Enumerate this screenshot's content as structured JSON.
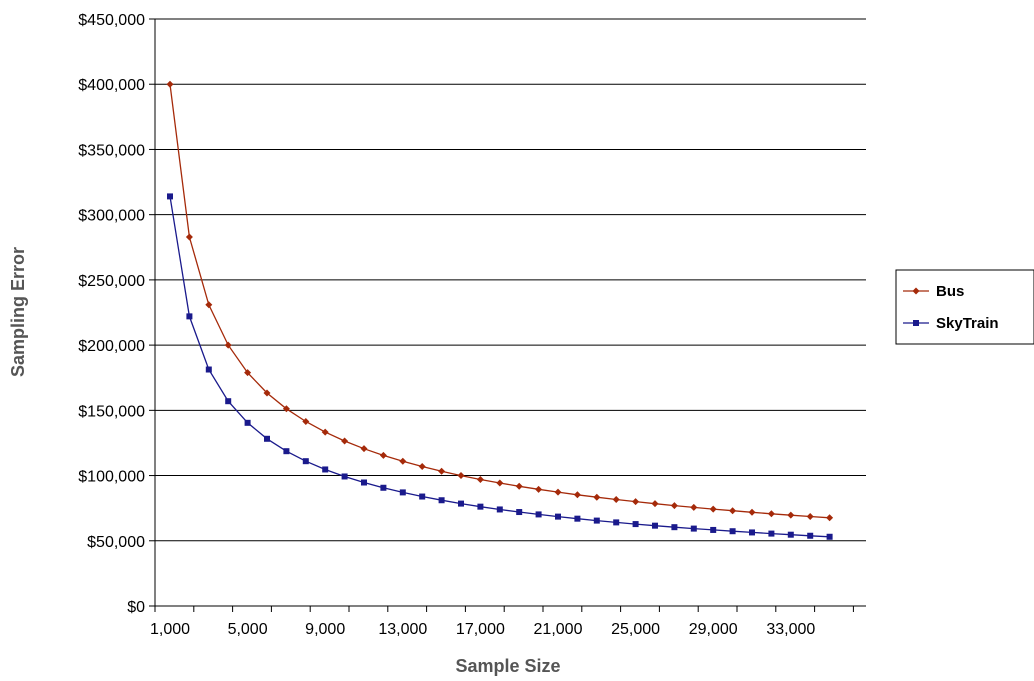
{
  "chart_data": {
    "type": "line",
    "title": "",
    "xlabel": "Sample Size",
    "ylabel": "Sampling Error",
    "xlim": [
      1000,
      35000
    ],
    "ylim": [
      0,
      450000
    ],
    "grid": "horizontal",
    "legend_position": "right",
    "x_ticks": [
      1000,
      5000,
      9000,
      13000,
      17000,
      21000,
      25000,
      29000,
      33000
    ],
    "x_tick_labels": [
      "1,000",
      "5,000",
      "9,000",
      "13,000",
      "17,000",
      "21,000",
      "25,000",
      "29,000",
      "33,000"
    ],
    "y_ticks": [
      0,
      50000,
      100000,
      150000,
      200000,
      250000,
      300000,
      350000,
      400000,
      450000
    ],
    "y_tick_labels": [
      "$0",
      "$50,000",
      "$100,000",
      "$150,000",
      "$200,000",
      "$250,000",
      "$300,000",
      "$350,000",
      "$400,000",
      "$450,000"
    ],
    "x": [
      1000,
      2000,
      3000,
      4000,
      5000,
      6000,
      7000,
      8000,
      9000,
      10000,
      11000,
      12000,
      13000,
      14000,
      15000,
      16000,
      17000,
      18000,
      19000,
      20000,
      21000,
      22000,
      23000,
      24000,
      25000,
      26000,
      27000,
      28000,
      29000,
      30000,
      31000,
      32000,
      33000,
      34000,
      35000
    ],
    "series": [
      {
        "name": "Bus",
        "color": "#a52a0a",
        "marker": "diamond",
        "values": [
          400000,
          282843,
          230940,
          200000,
          178885,
          163299,
          151186,
          141421,
          133333,
          126491,
          120605,
          115470,
          110940,
          106904,
          103280,
          100000,
          97014,
          94281,
          91766,
          89443,
          87287,
          85280,
          83406,
          81650,
          80000,
          78446,
          76980,
          75593,
          74278,
          73030,
          71842,
          70711,
          69631,
          68599,
          67612
        ]
      },
      {
        "name": "SkyTrain",
        "color": "#1a1a8c",
        "marker": "square",
        "values": [
          314000,
          222032,
          181288,
          157000,
          140425,
          128190,
          118680,
          111016,
          104667,
          99295,
          94675,
          90644,
          87088,
          83918,
          81074,
          78500,
          76157,
          74012,
          72036,
          70213,
          68520,
          66945,
          65474,
          64095,
          62800,
          61580,
          60429,
          59341,
          58308,
          57328,
          56396,
          55508,
          54661,
          53851,
          53075
        ]
      }
    ]
  }
}
